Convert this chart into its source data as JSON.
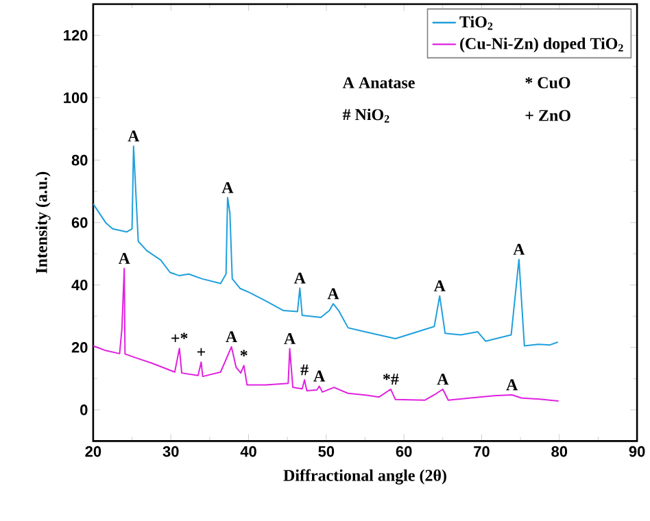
{
  "chart_data": {
    "type": "line",
    "xlabel": "Diffractional angle (2θ)",
    "ylabel": "Intensity (a.u.)",
    "xlim": [
      20,
      90
    ],
    "xticks": [
      20,
      30,
      40,
      50,
      60,
      70,
      80,
      90
    ],
    "ylim": [
      -10,
      130
    ],
    "yticks": [
      0,
      20,
      40,
      60,
      80,
      100,
      120
    ],
    "legend": "top right",
    "grid": false,
    "marker": "none",
    "line_style": "solid",
    "series": [
      {
        "name": "TiO$_{2}$",
        "color": "#1e9fdc",
        "x": [
          20,
          21.6,
          22.5,
          24.3,
          25,
          25.2,
          25.8,
          26.9,
          28.7,
          29.9,
          31.1,
          32.3,
          34,
          36.4,
          37.1,
          37.3,
          37.6,
          37.9,
          38.9,
          40.1,
          42.2,
          44.5,
          46.3,
          46.6,
          46.9,
          49.3,
          50.4,
          50.9,
          51.6,
          52.8,
          55,
          58.9,
          63.9,
          64.6,
          65.3,
          67.3,
          69.5,
          70.5,
          73.8,
          74.8,
          75.5,
          77.3,
          78.8,
          79.8
        ],
        "values": [
          66,
          60,
          58,
          57,
          58,
          84.5,
          54,
          51,
          48,
          44,
          43,
          43.5,
          42,
          40.5,
          43.5,
          68,
          63,
          42,
          38.9,
          37.6,
          34.9,
          31.8,
          31.5,
          39,
          30.3,
          29.6,
          31.8,
          34,
          31.8,
          26.3,
          25,
          22.8,
          26.7,
          36.5,
          24.5,
          24,
          25,
          22,
          24,
          48.2,
          20.5,
          21,
          20.8,
          21.7
        ]
      },
      {
        "name": "(Cu-Ni-Zn) doped TiO$_{2}$",
        "color": "#e020e0",
        "x": [
          20,
          21.6,
          23.4,
          23.7,
          24,
          24.1,
          25.8,
          27.5,
          30.5,
          31.1,
          31.4,
          33.5,
          33.9,
          34.1,
          36.4,
          37.8,
          38.4,
          39,
          39.4,
          39.8,
          42.2,
          45.1,
          45.3,
          45.7,
          46.9,
          47.2,
          47.5,
          48.8,
          49.1,
          49.5,
          51,
          52.8,
          55.2,
          56.8,
          58.3,
          58.9,
          62.7,
          63.9,
          65,
          65.7,
          68.6,
          71.6,
          73.9,
          75.1,
          77.5,
          79.9
        ],
        "values": [
          20.5,
          19,
          18,
          26,
          45.3,
          17.9,
          16.4,
          15,
          12.1,
          19.7,
          11.8,
          11,
          15.3,
          10.7,
          12.1,
          20.2,
          13.6,
          11.8,
          14.2,
          8,
          8,
          8.5,
          19.6,
          7.2,
          6.7,
          9.6,
          6.1,
          6.4,
          7.6,
          5.7,
          7.2,
          5.3,
          4.7,
          4.1,
          6.6,
          3.3,
          3.1,
          4.8,
          6.6,
          3.1,
          3.8,
          4.5,
          4.8,
          3.8,
          3.4,
          2.8
        ]
      }
    ],
    "annotations": [
      "A Anatase",
      "* CuO",
      "# NiO$_{2}$",
      "+ ZnO",
      {
        "text": "A",
        "x": 25.2,
        "y": 84.5
      },
      {
        "text": "A",
        "x": 37.3,
        "y": 68
      },
      {
        "text": "A",
        "x": 46.6,
        "y": 39
      },
      {
        "text": "A",
        "x": 50.9,
        "y": 34
      },
      {
        "text": "A",
        "x": 64.6,
        "y": 36.5
      },
      {
        "text": "A",
        "x": 74.8,
        "y": 48.2
      },
      {
        "text": "A",
        "x": 24,
        "y": 45.3
      },
      {
        "text": "+*",
        "x": 31.1,
        "y": 19.7
      },
      {
        "text": "+",
        "x": 33.9,
        "y": 15.3
      },
      {
        "text": "A",
        "x": 37.8,
        "y": 20.2
      },
      {
        "text": "*",
        "x": 39.4,
        "y": 14.2
      },
      {
        "text": "A",
        "x": 45.3,
        "y": 19.6
      },
      {
        "text": "#",
        "x": 47.2,
        "y": 9.6
      },
      {
        "text": "A",
        "x": 49.1,
        "y": 7.6
      },
      {
        "text": "*#",
        "x": 58.3,
        "y": 6.6
      },
      {
        "text": "A",
        "x": 65,
        "y": 6.6
      },
      {
        "text": "A",
        "x": 73.9,
        "y": 4.8
      }
    ]
  }
}
